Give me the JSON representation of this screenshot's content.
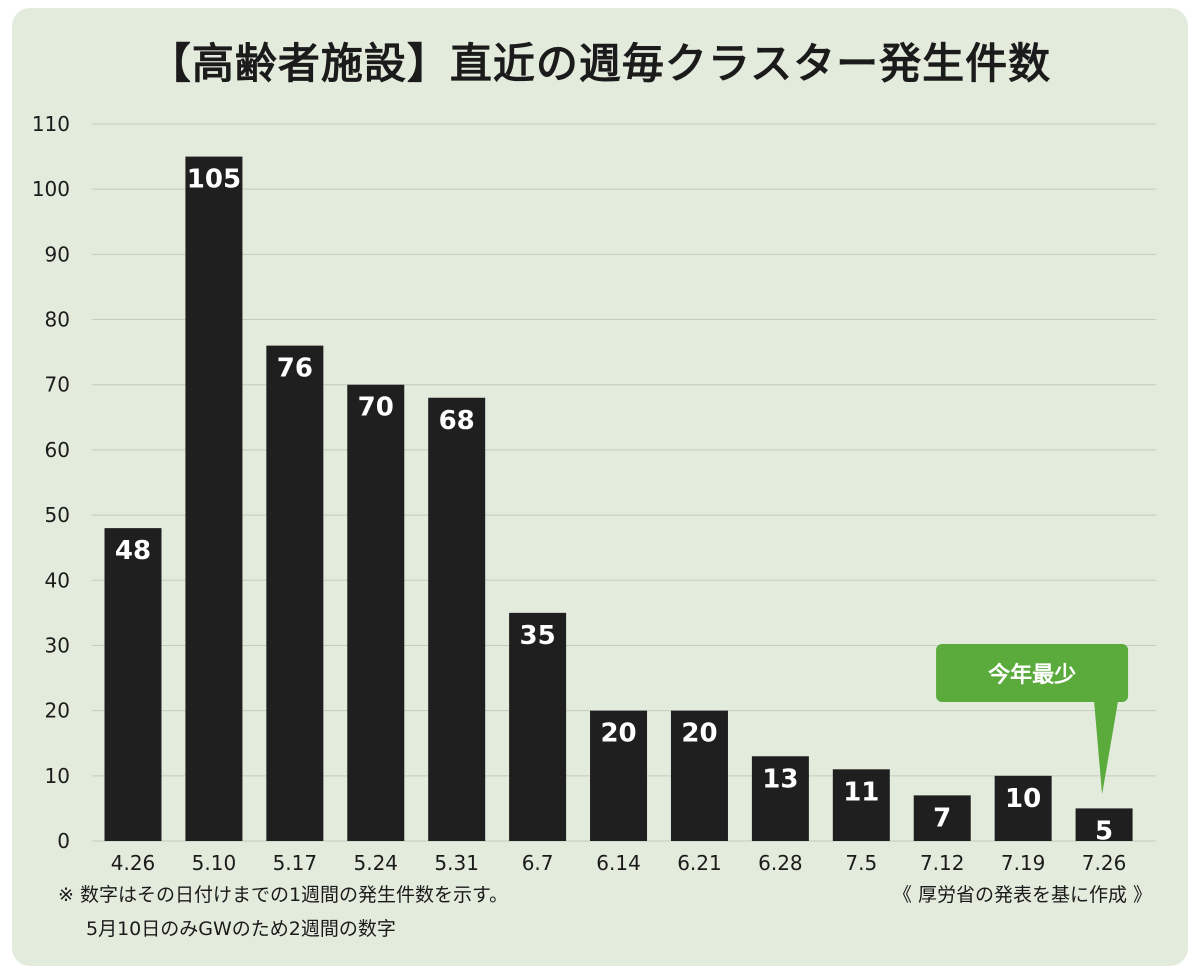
{
  "title": "【高齢者施設】直近の週毎クラスター発生件数",
  "notes": {
    "line1": "※ 数字はその日付けまでの1週間の発生件数を示す。",
    "line2": "5月10日のみGWのため2週間の数字",
    "source": "《 厚労省の発表を基に作成 》"
  },
  "callout": {
    "label": "今年最少",
    "color": "#5aaa3c"
  },
  "colors": {
    "background": "#e3ebdd",
    "bar": "#1f1f1f",
    "grid": "#c4cbbf",
    "label": "#ffffff"
  },
  "chart_data": {
    "type": "bar",
    "title": "【高齢者施設】直近の週毎クラスター発生件数",
    "xlabel": "",
    "ylabel": "",
    "categories": [
      "4.26",
      "5.10",
      "5.17",
      "5.24",
      "5.31",
      "6.7",
      "6.14",
      "6.21",
      "6.28",
      "7.5",
      "7.12",
      "7.19",
      "7.26"
    ],
    "values": [
      48,
      105,
      76,
      70,
      68,
      35,
      20,
      20,
      13,
      11,
      7,
      10,
      5
    ],
    "ylim": [
      0,
      110
    ],
    "yticks": [
      0,
      10,
      20,
      30,
      40,
      50,
      60,
      70,
      80,
      90,
      100,
      110
    ],
    "grid": true,
    "data_labels": true
  }
}
